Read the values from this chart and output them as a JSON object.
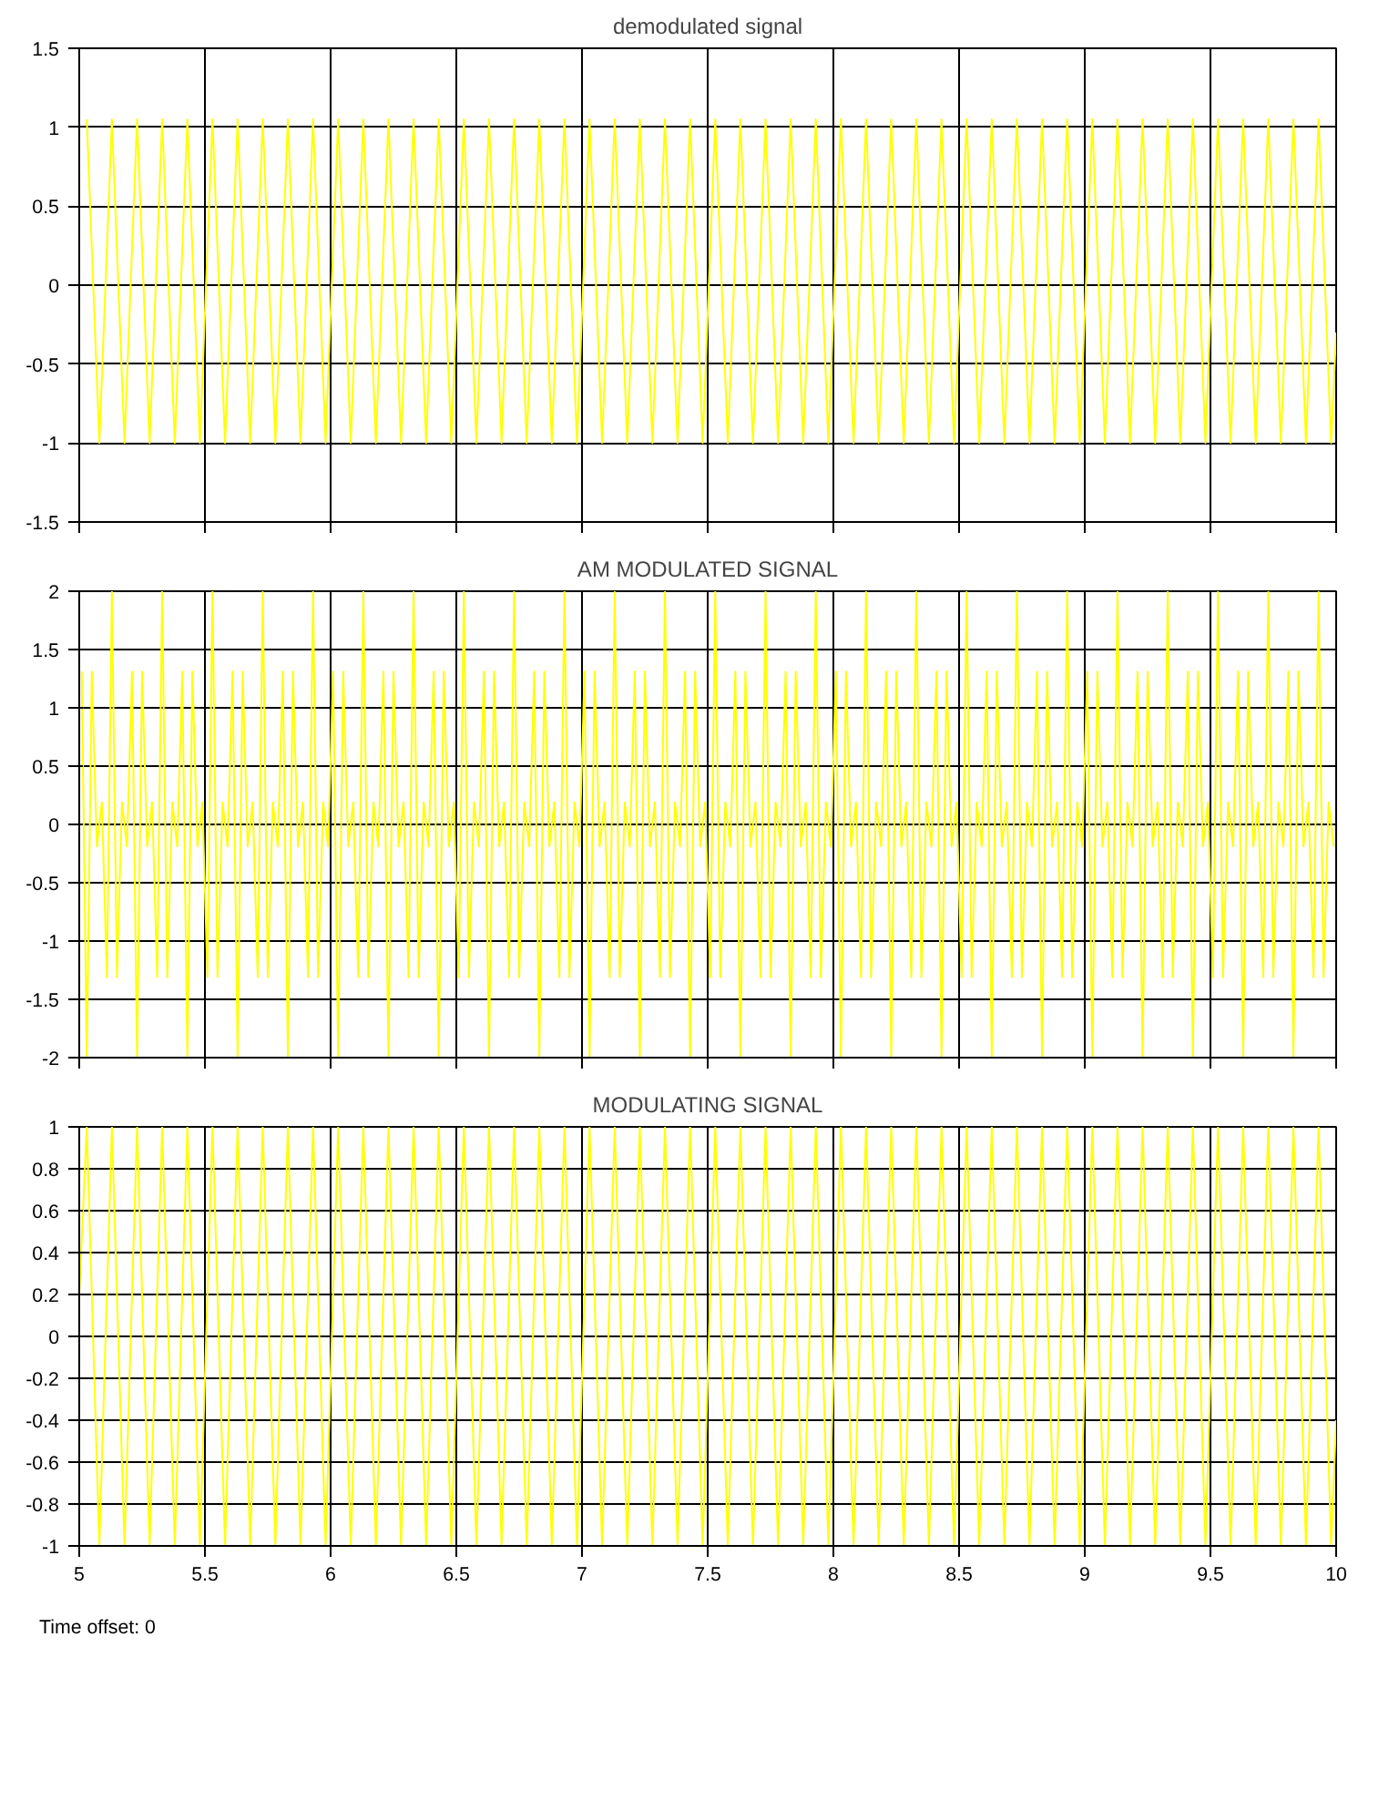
{
  "chart_data": [
    {
      "type": "line",
      "title": "demodulated signal",
      "xlim": [
        5,
        10
      ],
      "ylim": [
        -1.5,
        1.5
      ],
      "xticks": [
        5,
        5.5,
        6,
        6.5,
        7,
        7.5,
        8,
        8.5,
        9,
        9.5,
        10
      ],
      "yticks": [
        -1.5,
        -1,
        -0.5,
        0,
        0.5,
        1,
        1.5
      ],
      "grid": true,
      "tick_labels": "y",
      "x": [
        5.03,
        5.08,
        5.13,
        5.18,
        5.23,
        5.28,
        5.33,
        5.38,
        5.43,
        5.48,
        5.53,
        5.58,
        5.63,
        5.68,
        5.73,
        5.78,
        5.83,
        5.88,
        5.93,
        5.98,
        6.03,
        6.08,
        6.13,
        6.18,
        6.23,
        6.28,
        6.33,
        6.38,
        6.43,
        6.48,
        6.53,
        6.58,
        6.63,
        6.68,
        6.73,
        6.78,
        6.83,
        6.88,
        6.93,
        6.98,
        7.03,
        7.08,
        7.13,
        7.18,
        7.23,
        7.28,
        7.33,
        7.38,
        7.43,
        7.48,
        7.53,
        7.58,
        7.63,
        7.68,
        7.73,
        7.78,
        7.83,
        7.88,
        7.93,
        7.98,
        8.03,
        8.08,
        8.13,
        8.18,
        8.23,
        8.28,
        8.33,
        8.38,
        8.43,
        8.48,
        8.53,
        8.58,
        8.63,
        8.68,
        8.73,
        8.78,
        8.83,
        8.88,
        8.93,
        8.98,
        9.03,
        9.08,
        9.13,
        9.18,
        9.23,
        9.28,
        9.33,
        9.38,
        9.43,
        9.48,
        9.53,
        9.58,
        9.63,
        9.68,
        9.73,
        9.78,
        9.83,
        9.88,
        9.93,
        9.98,
        10
      ],
      "series": [
        {
          "color": "#ffff00",
          "values": [
            1.05,
            -1,
            1.05,
            -1,
            1.05,
            -1,
            1.05,
            -1,
            1.05,
            -1,
            1.05,
            -1,
            1.05,
            -1,
            1.05,
            -1,
            1.05,
            -1,
            1.05,
            -1,
            1.05,
            -1,
            1.05,
            -1,
            1.05,
            -1,
            1.05,
            -1,
            1.05,
            -1,
            1.05,
            -1,
            1.05,
            -1,
            1.05,
            -1,
            1.05,
            -1,
            1.05,
            -1,
            1.05,
            -1,
            1.05,
            -1,
            1.05,
            -1,
            1.05,
            -1,
            1.05,
            -1,
            1.05,
            -1,
            1.05,
            -1,
            1.05,
            -1,
            1.05,
            -1,
            1.05,
            -1,
            1.05,
            -1,
            1.05,
            -1,
            1.05,
            -1,
            1.05,
            -1,
            1.05,
            -1,
            1.05,
            -1,
            1.05,
            -1,
            1.05,
            -1,
            1.05,
            -1,
            1.05,
            -1,
            1.05,
            -1,
            1.05,
            -1,
            1.05,
            -1,
            1.05,
            -1,
            1.05,
            -1,
            1.05,
            -1,
            1.05,
            -1,
            1.05,
            -1,
            1.05,
            -1,
            1.05,
            -1,
            -0.3
          ]
        }
      ]
    },
    {
      "type": "line",
      "title": "AM MODULATED SIGNAL",
      "xlim": [
        5,
        10
      ],
      "ylim": [
        -2,
        2
      ],
      "xticks": [
        5,
        5.5,
        6,
        6.5,
        7,
        7.5,
        8,
        8.5,
        9,
        9.5,
        10
      ],
      "yticks": [
        -2,
        -1.5,
        -1,
        -0.5,
        0,
        0.5,
        1,
        1.5,
        2
      ],
      "grid": true,
      "tick_labels": "y",
      "x": [
        5.01,
        5.03,
        5.05,
        5.07,
        5.09,
        5.11,
        5.13,
        5.15,
        5.17,
        5.19,
        5.21,
        5.23,
        5.25,
        5.27,
        5.29,
        5.31,
        5.33,
        5.35,
        5.37,
        5.39,
        5.41,
        5.43,
        5.45,
        5.47,
        5.49,
        5.51,
        5.53,
        5.55,
        5.57,
        5.59,
        5.61,
        5.63,
        5.65,
        5.67,
        5.69,
        5.71,
        5.73,
        5.75,
        5.77,
        5.79,
        5.81,
        5.83,
        5.85,
        5.87,
        5.89,
        5.91,
        5.93,
        5.95,
        5.97,
        5.99,
        6.01,
        6.03,
        6.05,
        6.07,
        6.09,
        6.11,
        6.13,
        6.15,
        6.17,
        6.19,
        6.21,
        6.23,
        6.25,
        6.27,
        6.29,
        6.31,
        6.33,
        6.35,
        6.37,
        6.39,
        6.41,
        6.43,
        6.45,
        6.47,
        6.49,
        6.51,
        6.53,
        6.55,
        6.57,
        6.59,
        6.61,
        6.63,
        6.65,
        6.67,
        6.69,
        6.71,
        6.73,
        6.75,
        6.77,
        6.79,
        6.81,
        6.83,
        6.85,
        6.87,
        6.89,
        6.91,
        6.93,
        6.95,
        6.97,
        6.99,
        7.01,
        7.03,
        7.05,
        7.07,
        7.09,
        7.11,
        7.13,
        7.15,
        7.17,
        7.19,
        7.21,
        7.23,
        7.25,
        7.27,
        7.29,
        7.31,
        7.33,
        7.35,
        7.37,
        7.39,
        7.41,
        7.43,
        7.45,
        7.47,
        7.49,
        7.51,
        7.53,
        7.55,
        7.57,
        7.59,
        7.61,
        7.63,
        7.65,
        7.67,
        7.69,
        7.71,
        7.73,
        7.75,
        7.77,
        7.79,
        7.81,
        7.83,
        7.85,
        7.87,
        7.89,
        7.91,
        7.93,
        7.95,
        7.97,
        7.99,
        8.01,
        8.03,
        8.05,
        8.07,
        8.09,
        8.11,
        8.13,
        8.15,
        8.17,
        8.19,
        8.21,
        8.23,
        8.25,
        8.27,
        8.29,
        8.31,
        8.33,
        8.35,
        8.37,
        8.39,
        8.41,
        8.43,
        8.45,
        8.47,
        8.49,
        8.51,
        8.53,
        8.55,
        8.57,
        8.59,
        8.61,
        8.63,
        8.65,
        8.67,
        8.69,
        8.71,
        8.73,
        8.75,
        8.77,
        8.79,
        8.81,
        8.83,
        8.85,
        8.87,
        8.89,
        8.91,
        8.93,
        8.95,
        8.97,
        8.99,
        9.01,
        9.03,
        9.05,
        9.07,
        9.09,
        9.11,
        9.13,
        9.15,
        9.17,
        9.19,
        9.21,
        9.23,
        9.25,
        9.27,
        9.29,
        9.31,
        9.33,
        9.35,
        9.37,
        9.39,
        9.41,
        9.43,
        9.45,
        9.47,
        9.49,
        9.51,
        9.53,
        9.55,
        9.57,
        9.59,
        9.61,
        9.63,
        9.65,
        9.67,
        9.69,
        9.71,
        9.73,
        9.75,
        9.77,
        9.79,
        9.81,
        9.83,
        9.85,
        9.87,
        9.89,
        9.91,
        9.93,
        9.95,
        9.97,
        9.99
      ],
      "series": [
        {
          "color": "#ffff00",
          "values": [
            1.31,
            -2,
            1.31,
            -0.19,
            0.19,
            -1.31,
            2,
            -1.31,
            0.19,
            -0.19,
            1.31,
            -2,
            1.31,
            -0.19,
            0.19,
            -1.31,
            2,
            -1.31,
            0.19,
            -0.19,
            1.31,
            -2,
            1.31,
            -0.19,
            0.19,
            -1.31,
            2,
            -1.31,
            0.19,
            -0.19,
            1.31,
            -2,
            1.31,
            -0.19,
            0.19,
            -1.31,
            2,
            -1.31,
            0.19,
            -0.19,
            1.31,
            -2,
            1.31,
            -0.19,
            0.19,
            -1.31,
            2,
            -1.31,
            0.19,
            -0.19,
            1.31,
            -2,
            1.31,
            -0.19,
            0.19,
            -1.31,
            2,
            -1.31,
            0.19,
            -0.19,
            1.31,
            -2,
            1.31,
            -0.19,
            0.19,
            -1.31,
            2,
            -1.31,
            0.19,
            -0.19,
            1.31,
            -2,
            1.31,
            -0.19,
            0.19,
            -1.31,
            2,
            -1.31,
            0.19,
            -0.19,
            1.31,
            -2,
            1.31,
            -0.19,
            0.19,
            -1.31,
            2,
            -1.31,
            0.19,
            -0.19,
            1.31,
            -2,
            1.31,
            -0.19,
            0.19,
            -1.31,
            2,
            -1.31,
            0.19,
            -0.19,
            1.31,
            -2,
            1.31,
            -0.19,
            0.19,
            -1.31,
            2,
            -1.31,
            0.19,
            -0.19,
            1.31,
            -2,
            1.31,
            -0.19,
            0.19,
            -1.31,
            2,
            -1.31,
            0.19,
            -0.19,
            1.31,
            -2,
            1.31,
            -0.19,
            0.19,
            -1.31,
            2,
            -1.31,
            0.19,
            -0.19,
            1.31,
            -2,
            1.31,
            -0.19,
            0.19,
            -1.31,
            2,
            -1.31,
            0.19,
            -0.19,
            1.31,
            -2,
            1.31,
            -0.19,
            0.19,
            -1.31,
            2,
            -1.31,
            0.19,
            -0.19,
            1.31,
            -2,
            1.31,
            -0.19,
            0.19,
            -1.31,
            2,
            -1.31,
            0.19,
            -0.19,
            1.31,
            -2,
            1.31,
            -0.19,
            0.19,
            -1.31,
            2,
            -1.31,
            0.19,
            -0.19,
            1.31,
            -2,
            1.31,
            -0.19,
            0.19,
            -1.31,
            2,
            -1.31,
            0.19,
            -0.19,
            1.31,
            -2,
            1.31,
            -0.19,
            0.19,
            -1.31,
            2,
            -1.31,
            0.19,
            -0.19,
            1.31,
            -2,
            1.31,
            -0.19,
            0.19,
            -1.31,
            2,
            -1.31,
            0.19,
            -0.19,
            1.31,
            -2,
            1.31,
            -0.19,
            0.19,
            -1.31,
            2,
            -1.31,
            0.19,
            -0.19,
            1.31,
            -2,
            1.31,
            -0.19,
            0.19,
            -1.31,
            2,
            -1.31,
            0.19,
            -0.19,
            1.31,
            -2,
            1.31,
            -0.19,
            0.19,
            -1.31,
            2,
            -1.31,
            0.19,
            -0.19,
            1.31,
            -2,
            1.31,
            -0.19,
            0.19,
            -1.31,
            2,
            -1.31,
            0.19,
            -0.19,
            1.31,
            -2,
            1.31,
            -0.19,
            0.19,
            -1.31,
            2,
            -1.31,
            0.19,
            -0.19
          ]
        }
      ]
    },
    {
      "type": "line",
      "title": "MODULATING SIGNAL",
      "xlim": [
        5,
        10
      ],
      "ylim": [
        -1,
        1
      ],
      "xticks": [
        5,
        5.5,
        6,
        6.5,
        7,
        7.5,
        8,
        8.5,
        9,
        9.5,
        10
      ],
      "yticks": [
        -1,
        -0.8,
        -0.6,
        -0.4,
        -0.2,
        0,
        0.2,
        0.4,
        0.6,
        0.8,
        1
      ],
      "grid": true,
      "annotations": [
        "Time offset: 0"
      ],
      "x": [
        5,
        5.03,
        5.08,
        5.13,
        5.18,
        5.23,
        5.28,
        5.33,
        5.38,
        5.43,
        5.48,
        5.53,
        5.58,
        5.63,
        5.68,
        5.73,
        5.78,
        5.83,
        5.88,
        5.93,
        5.98,
        6.03,
        6.08,
        6.13,
        6.18,
        6.23,
        6.28,
        6.33,
        6.38,
        6.43,
        6.48,
        6.53,
        6.58,
        6.63,
        6.68,
        6.73,
        6.78,
        6.83,
        6.88,
        6.93,
        6.98,
        7.03,
        7.08,
        7.13,
        7.18,
        7.23,
        7.28,
        7.33,
        7.38,
        7.43,
        7.48,
        7.53,
        7.58,
        7.63,
        7.68,
        7.73,
        7.78,
        7.83,
        7.88,
        7.93,
        7.98,
        8.03,
        8.08,
        8.13,
        8.18,
        8.23,
        8.28,
        8.33,
        8.38,
        8.43,
        8.48,
        8.53,
        8.58,
        8.63,
        8.68,
        8.73,
        8.78,
        8.83,
        8.88,
        8.93,
        8.98,
        9.03,
        9.08,
        9.13,
        9.18,
        9.23,
        9.28,
        9.33,
        9.38,
        9.43,
        9.48,
        9.53,
        9.58,
        9.63,
        9.68,
        9.73,
        9.78,
        9.83,
        9.88,
        9.93,
        9.98,
        10
      ],
      "series": [
        {
          "color": "#ffff00",
          "values": [
            0.2,
            1,
            -1,
            1,
            -1,
            1,
            -1,
            1,
            -1,
            1,
            -1,
            1,
            -1,
            1,
            -1,
            1,
            -1,
            1,
            -1,
            1,
            -1,
            1,
            -1,
            1,
            -1,
            1,
            -1,
            1,
            -1,
            1,
            -1,
            1,
            -1,
            1,
            -1,
            1,
            -1,
            1,
            -1,
            1,
            -1,
            1,
            -1,
            1,
            -1,
            1,
            -1,
            1,
            -1,
            1,
            -1,
            1,
            -1,
            1,
            -1,
            1,
            -1,
            1,
            -1,
            1,
            -1,
            1,
            -1,
            1,
            -1,
            1,
            -1,
            1,
            -1,
            1,
            -1,
            1,
            -1,
            1,
            -1,
            1,
            -1,
            1,
            -1,
            1,
            -1,
            1,
            -1,
            1,
            -1,
            1,
            -1,
            1,
            -1,
            1,
            -1,
            1,
            -1,
            1,
            -1,
            1,
            -1,
            1,
            -1,
            1,
            -1,
            -0.4
          ]
        }
      ]
    }
  ]
}
